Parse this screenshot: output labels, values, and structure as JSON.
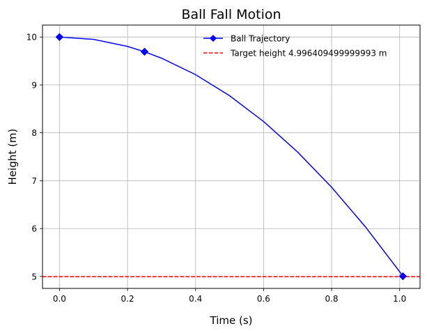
{
  "chart_data": {
    "type": "line",
    "title": "Ball Fall Motion",
    "xlabel": "Time (s)",
    "ylabel": "Height (m)",
    "xlim": [
      -0.05,
      1.06
    ],
    "ylim": [
      4.75,
      10.25
    ],
    "xticks": [
      0.0,
      0.2,
      0.4,
      0.6,
      0.8,
      1.0
    ],
    "xtick_labels": [
      "0.0",
      "0.2",
      "0.4",
      "0.6",
      "0.8",
      "1.0"
    ],
    "yticks": [
      5,
      6,
      7,
      8,
      9,
      10
    ],
    "ytick_labels": [
      "5",
      "6",
      "7",
      "8",
      "9",
      "10"
    ],
    "grid": true,
    "legend_position": "top-center",
    "series": [
      {
        "name": "Ball Trajectory",
        "kind": "line",
        "color": "#0000ff",
        "marker": "diamond",
        "x": [
          0.0,
          0.1,
          0.2,
          0.25,
          0.3,
          0.4,
          0.5,
          0.6,
          0.7,
          0.8,
          0.9,
          1.0,
          1.0096
        ],
        "y": [
          10.0,
          9.951,
          9.804,
          9.693,
          9.559,
          9.215,
          8.775,
          8.236,
          7.599,
          6.864,
          6.031,
          5.1,
          5.004
        ],
        "marker_x": [
          0.0,
          0.25,
          1.0096
        ],
        "marker_y": [
          10.0,
          9.693,
          5.004
        ]
      },
      {
        "name": "Target height 4.996409499999993 m",
        "kind": "hline",
        "color": "#ff0000",
        "linestyle": "dashed",
        "y": 4.996409499999993
      }
    ]
  }
}
